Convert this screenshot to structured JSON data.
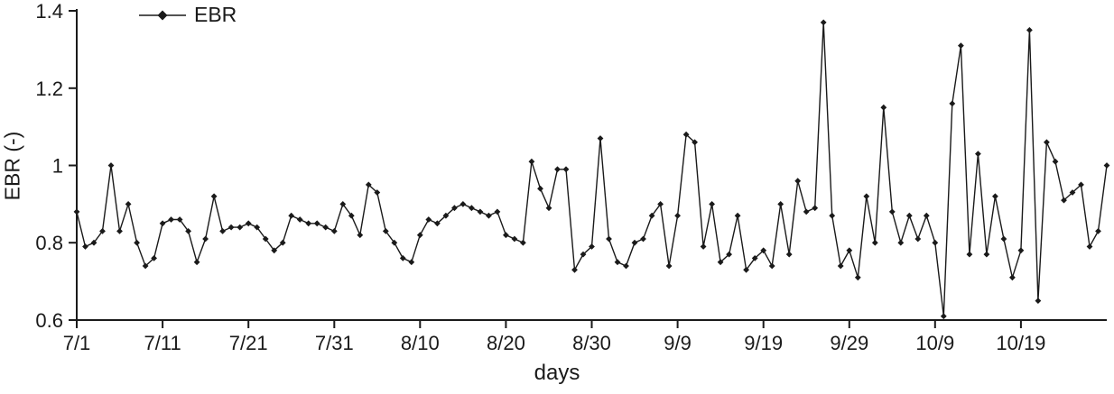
{
  "chart_data": {
    "type": "line",
    "title": "",
    "xlabel": "days",
    "ylabel": "EBR (-)",
    "ylim": [
      0.6,
      1.4
    ],
    "grid": false,
    "legend_position": "top-left",
    "yticks": [
      {
        "value": 0.6,
        "label": "0.6"
      },
      {
        "value": 0.8,
        "label": "0.8"
      },
      {
        "value": 1.0,
        "label": "1"
      },
      {
        "value": 1.2,
        "label": "1.2"
      },
      {
        "value": 1.4,
        "label": "1.4"
      }
    ],
    "xticks": [
      {
        "index": 0,
        "label": "7/1"
      },
      {
        "index": 10,
        "label": "7/11"
      },
      {
        "index": 20,
        "label": "7/21"
      },
      {
        "index": 30,
        "label": "7/31"
      },
      {
        "index": 40,
        "label": "8/10"
      },
      {
        "index": 50,
        "label": "8/20"
      },
      {
        "index": 60,
        "label": "8/30"
      },
      {
        "index": 70,
        "label": "9/9"
      },
      {
        "index": 80,
        "label": "9/19"
      },
      {
        "index": 90,
        "label": "9/29"
      },
      {
        "index": 100,
        "label": "10/9"
      },
      {
        "index": 110,
        "label": "10/19"
      }
    ],
    "x": [
      "7/1",
      "7/2",
      "7/3",
      "7/4",
      "7/5",
      "7/6",
      "7/7",
      "7/8",
      "7/9",
      "7/10",
      "7/11",
      "7/12",
      "7/13",
      "7/14",
      "7/15",
      "7/16",
      "7/17",
      "7/18",
      "7/19",
      "7/20",
      "7/21",
      "7/22",
      "7/23",
      "7/24",
      "7/25",
      "7/26",
      "7/27",
      "7/28",
      "7/29",
      "7/30",
      "7/31",
      "8/1",
      "8/2",
      "8/3",
      "8/4",
      "8/5",
      "8/6",
      "8/7",
      "8/8",
      "8/9",
      "8/10",
      "8/11",
      "8/12",
      "8/13",
      "8/14",
      "8/15",
      "8/16",
      "8/17",
      "8/18",
      "8/19",
      "8/20",
      "8/21",
      "8/22",
      "8/23",
      "8/24",
      "8/25",
      "8/26",
      "8/27",
      "8/28",
      "8/29",
      "8/30",
      "8/31",
      "9/1",
      "9/2",
      "9/3",
      "9/4",
      "9/5",
      "9/6",
      "9/7",
      "9/8",
      "9/9",
      "9/10",
      "9/11",
      "9/12",
      "9/13",
      "9/14",
      "9/15",
      "9/16",
      "9/17",
      "9/18",
      "9/19",
      "9/20",
      "9/21",
      "9/22",
      "9/23",
      "9/24",
      "9/25",
      "9/26",
      "9/27",
      "9/28",
      "9/29",
      "9/30",
      "10/1",
      "10/2",
      "10/3",
      "10/4",
      "10/5",
      "10/6",
      "10/7",
      "10/8",
      "10/9",
      "10/10",
      "10/11",
      "10/12",
      "10/13",
      "10/14",
      "10/15",
      "10/16",
      "10/17",
      "10/18",
      "10/19",
      "10/20",
      "10/21",
      "10/22",
      "10/23",
      "10/24",
      "10/25",
      "10/26",
      "10/27",
      "10/28",
      "10/29"
    ],
    "series": [
      {
        "name": "EBR",
        "marker": "diamond",
        "color": "#1a1a1a",
        "values": [
          0.88,
          0.79,
          0.8,
          0.83,
          1.0,
          0.83,
          0.9,
          0.8,
          0.74,
          0.76,
          0.85,
          0.86,
          0.86,
          0.83,
          0.75,
          0.81,
          0.92,
          0.83,
          0.84,
          0.84,
          0.85,
          0.84,
          0.81,
          0.78,
          0.8,
          0.87,
          0.86,
          0.85,
          0.85,
          0.84,
          0.83,
          0.9,
          0.87,
          0.82,
          0.95,
          0.93,
          0.83,
          0.8,
          0.76,
          0.75,
          0.82,
          0.86,
          0.85,
          0.87,
          0.89,
          0.9,
          0.89,
          0.88,
          0.87,
          0.88,
          0.82,
          0.81,
          0.8,
          1.01,
          0.94,
          0.89,
          0.99,
          0.99,
          0.73,
          0.77,
          0.79,
          1.07,
          0.81,
          0.75,
          0.74,
          0.8,
          0.81,
          0.87,
          0.9,
          0.74,
          0.87,
          1.08,
          1.06,
          0.79,
          0.9,
          0.75,
          0.77,
          0.87,
          0.73,
          0.76,
          0.78,
          0.74,
          0.9,
          0.77,
          0.96,
          0.88,
          0.89,
          1.37,
          0.87,
          0.74,
          0.78,
          0.71,
          0.92,
          0.8,
          1.15,
          0.88,
          0.8,
          0.87,
          0.81,
          0.87,
          0.8,
          0.61,
          1.16,
          1.31,
          0.77,
          1.03,
          0.77,
          0.92,
          0.81,
          0.71,
          0.78,
          1.35,
          0.65,
          1.06,
          1.01,
          0.91,
          0.93,
          0.95,
          0.79,
          0.83,
          1.0
        ]
      }
    ]
  },
  "colors": {
    "line": "#1a1a1a",
    "text": "#1a1a1a",
    "background": "#ffffff"
  }
}
